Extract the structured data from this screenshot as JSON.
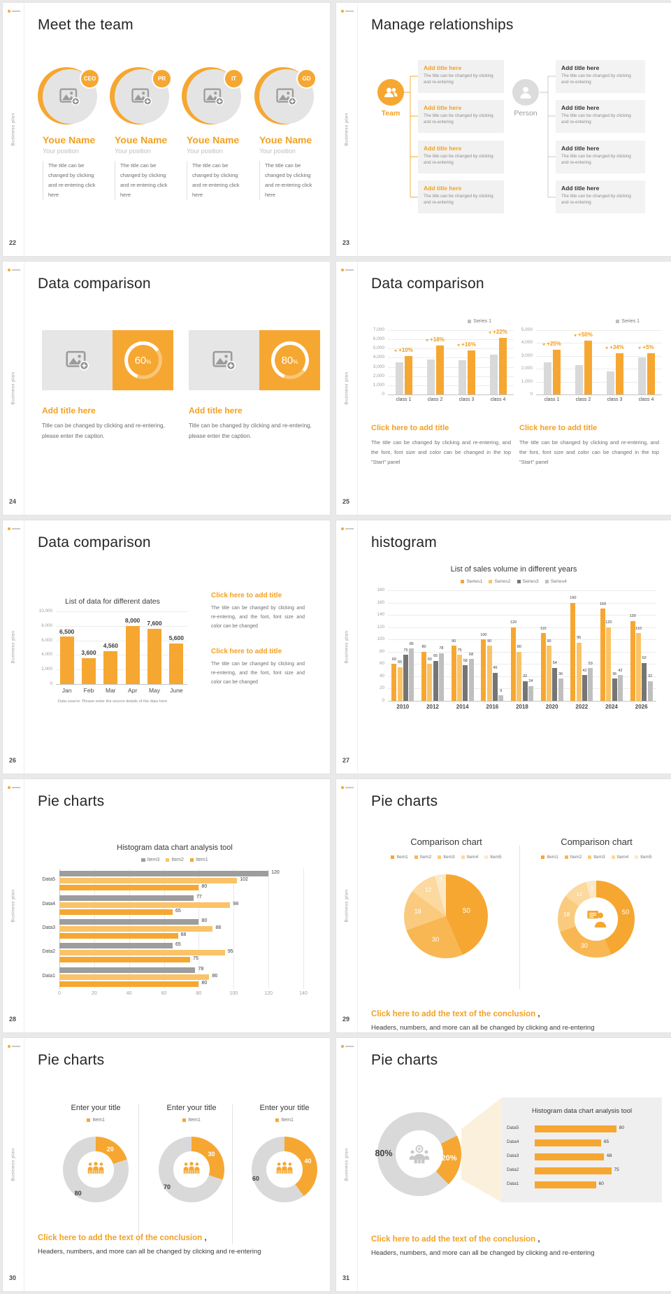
{
  "brand": "Business plan",
  "accent": "#F6A731",
  "slides": {
    "s22": {
      "page": "22",
      "title": "Meet the team",
      "members": [
        {
          "badge": "CEO",
          "name": "Youe Name",
          "position": "Your position",
          "desc": "The title can be changed by clicking and re-entering click here"
        },
        {
          "badge": "PR",
          "name": "Youe Name",
          "position": "Your position",
          "desc": "The title can be changed by clicking and re-entering click here"
        },
        {
          "badge": "IT",
          "name": "Youe Name",
          "position": "Your position",
          "desc": "The title can be changed by clicking and re-entering click here"
        },
        {
          "badge": "GD",
          "name": "Youe Name",
          "position": "Your position",
          "desc": "The title can be changed by clicking and re-entering click here"
        }
      ]
    },
    "s23": {
      "page": "23",
      "title": "Manage relationships",
      "team_label": "Team",
      "person_label": "Person",
      "box_title": "Add title here",
      "box_text": "The title can be changed by clicking and re-entering"
    },
    "s24": {
      "page": "24",
      "title": "Data comparison",
      "panels": [
        {
          "percent": "60",
          "title": "Add title here",
          "text": "Title can be changed by clicking and re-entering, please enter the caption."
        },
        {
          "percent": "80",
          "title": "Add title here",
          "text": "Title can be changed by clicking and re-entering, please enter the caption."
        }
      ]
    },
    "s25": {
      "page": "25",
      "title": "Data comparison",
      "blocks": [
        {
          "title": "Click here to add title",
          "text": "The title can be changed by clicking and re-entering, and the font, font size and color can be changed in the top \"Start\" panel"
        },
        {
          "title": "Click here to add title",
          "text": "The title can be changed by clicking and re-entering, and the font, font size and color can be changed in the top \"Start\" panel"
        }
      ]
    },
    "s26": {
      "page": "26",
      "title": "Data comparison",
      "blocks": [
        {
          "title": "Click here to add title",
          "text": "The title can be changed by clicking and re-entering, and the font, font size and color can be changed"
        },
        {
          "title": "Click here to add title",
          "text": "The title can be changed by clicking and re-entering, and the font, font size and color can be changed"
        }
      ]
    },
    "s27": {
      "page": "27",
      "title": "histogram"
    },
    "s28": {
      "page": "28",
      "title": "Pie charts"
    },
    "s29": {
      "page": "29",
      "title": "Pie charts",
      "conclusion": "Click here to add the text of the conclusion",
      "conclusion_comma": " ,",
      "conclusion_sub": "Headers, numbers, and more can all be changed by clicking and re-entering"
    },
    "s30": {
      "page": "30",
      "title": "Pie charts",
      "conclusion": "Click here to add the text of the conclusion",
      "conclusion_comma": " ,",
      "conclusion_sub": "Headers, numbers, and more can all be changed by clicking and re-entering"
    },
    "s31": {
      "page": "31",
      "title": "Pie charts",
      "conclusion": "Click here to add the text of the conclusion",
      "conclusion_comma": " ,",
      "conclusion_sub": "Headers, numbers, and more can all be changed by clicking and re-entering"
    }
  },
  "chart_data": [
    {
      "id": "s25-left",
      "type": "bar",
      "legend": [
        {
          "label": "Series 1",
          "color": "#BFBFBF"
        }
      ],
      "categories": [
        "class 1",
        "class 2",
        "class 3",
        "class 4"
      ],
      "series": [
        {
          "name": "base",
          "color": "#D9D9D9",
          "values": [
            3500,
            3800,
            3700,
            4300
          ]
        },
        {
          "name": "growth",
          "color": "#F6A731",
          "values": [
            4200,
            5300,
            4800,
            6200
          ]
        }
      ],
      "growth_labels": [
        "+10%",
        "+18%",
        "+16%",
        "+22%"
      ],
      "ylim": [
        0,
        7000
      ],
      "ystep": 1000
    },
    {
      "id": "s25-right",
      "type": "bar",
      "legend": [
        {
          "label": "Series 1",
          "color": "#BFBFBF"
        }
      ],
      "categories": [
        "class 1",
        "class 2",
        "class 3",
        "class 4"
      ],
      "series": [
        {
          "name": "base",
          "color": "#D9D9D9",
          "values": [
            2500,
            2300,
            1800,
            2900
          ]
        },
        {
          "name": "growth",
          "color": "#F6A731",
          "values": [
            3500,
            4200,
            3200,
            3200
          ]
        }
      ],
      "growth_labels": [
        "+25%",
        "+50%",
        "+34%",
        "+5%"
      ],
      "ylim": [
        0,
        5000
      ],
      "ystep": 1000
    },
    {
      "id": "s26",
      "type": "bar",
      "title": "List of data for different dates",
      "categories": [
        "Jan",
        "Feb",
        "Mar",
        "Apr",
        "May",
        "June"
      ],
      "series": [
        {
          "name": "data",
          "color": "#F6A731",
          "values": [
            6500,
            3600,
            4560,
            8000,
            7600,
            5600
          ]
        }
      ],
      "ylim": [
        0,
        10000
      ],
      "ystep": 2000,
      "value_labels": true,
      "source_note": "Data source: Please enter the source details of the data here"
    },
    {
      "id": "s27",
      "type": "bar",
      "title": "List of sales volume in different years",
      "categories": [
        "2010",
        "2012",
        "2014",
        "2016",
        "2018",
        "2020",
        "2022",
        "2024",
        "2026"
      ],
      "series": [
        {
          "name": "Series1",
          "color": "#F6A731",
          "values": [
            60,
            80,
            90,
            100,
            120,
            110,
            160,
            150,
            130
          ]
        },
        {
          "name": "Series2",
          "color": "#FAC368",
          "values": [
            55,
            60,
            75,
            90,
            80,
            90,
            95,
            120,
            110
          ]
        },
        {
          "name": "Series3",
          "color": "#757575",
          "values": [
            75,
            65,
            58,
            46,
            32,
            54,
            42,
            36,
            62
          ]
        },
        {
          "name": "Series4",
          "color": "#BFBFBF",
          "values": [
            85,
            78,
            68,
            9,
            24,
            36,
            53,
            42,
            32
          ]
        }
      ],
      "ylim": [
        0,
        180
      ],
      "ystep": 20,
      "value_labels": true
    },
    {
      "id": "s28",
      "type": "bar-horizontal",
      "title": "Histogram data chart analysis tool",
      "categories": [
        "Data5",
        "Data4",
        "Data3",
        "Data2",
        "Data1"
      ],
      "series": [
        {
          "name": "Item3",
          "color": "#9D9D9D",
          "values": [
            120,
            77,
            80,
            65,
            78
          ]
        },
        {
          "name": "Item2",
          "color": "#FAC368",
          "values": [
            102,
            98,
            88,
            95,
            86
          ]
        },
        {
          "name": "Item1",
          "color": "#F6A731",
          "values": [
            80,
            65,
            68,
            75,
            80
          ]
        }
      ],
      "xlim": [
        0,
        140
      ],
      "xstep": 20,
      "value_labels": true
    },
    {
      "id": "s29-left",
      "type": "pie",
      "title": "Comparison chart",
      "labels": [
        "Item1",
        "Item2",
        "Item3",
        "Item4",
        "Item5"
      ],
      "values": [
        50,
        30,
        18,
        12,
        5
      ],
      "colors": [
        "#F6A731",
        "#F8B752",
        "#FACB7E",
        "#FBD99F",
        "#FCE8C5"
      ]
    },
    {
      "id": "s29-right",
      "type": "donut",
      "title": "Comparison chart",
      "labels": [
        "Item1",
        "Item2",
        "Item3",
        "Item4",
        "Item5"
      ],
      "values": [
        50,
        30,
        18,
        12,
        5
      ],
      "colors": [
        "#F6A731",
        "#F8B752",
        "#FACB7E",
        "#FBD99F",
        "#FCE8C5"
      ],
      "center_icon": "businessman-icon"
    },
    {
      "id": "s30",
      "type": "donut-set",
      "group_title": "Enter your title",
      "legend": [
        {
          "label": "Item1",
          "color": "#F6A731"
        }
      ],
      "donuts": [
        {
          "values": [
            20,
            80
          ]
        },
        {
          "values": [
            30,
            70
          ]
        },
        {
          "values": [
            40,
            60
          ]
        }
      ],
      "colors": [
        "#F6A731",
        "#D9D9D9"
      ],
      "center_icon": "people-group-icon"
    },
    {
      "id": "s31-donut",
      "type": "donut",
      "values": [
        20,
        80
      ],
      "labels": [
        "20%",
        "80%"
      ],
      "colors": [
        "#F6A731",
        "#D9D9D9"
      ],
      "center_icon": "person-gear-icon"
    },
    {
      "id": "s31-bars",
      "type": "bar-horizontal",
      "title": "Histogram data chart analysis tool",
      "categories": [
        "Data5",
        "Data4",
        "Data3",
        "Data2",
        "Data1"
      ],
      "series": [
        {
          "name": "value",
          "color": "#F6A731",
          "values": [
            80,
            65,
            68,
            75,
            60
          ]
        }
      ],
      "value_labels": true
    }
  ]
}
